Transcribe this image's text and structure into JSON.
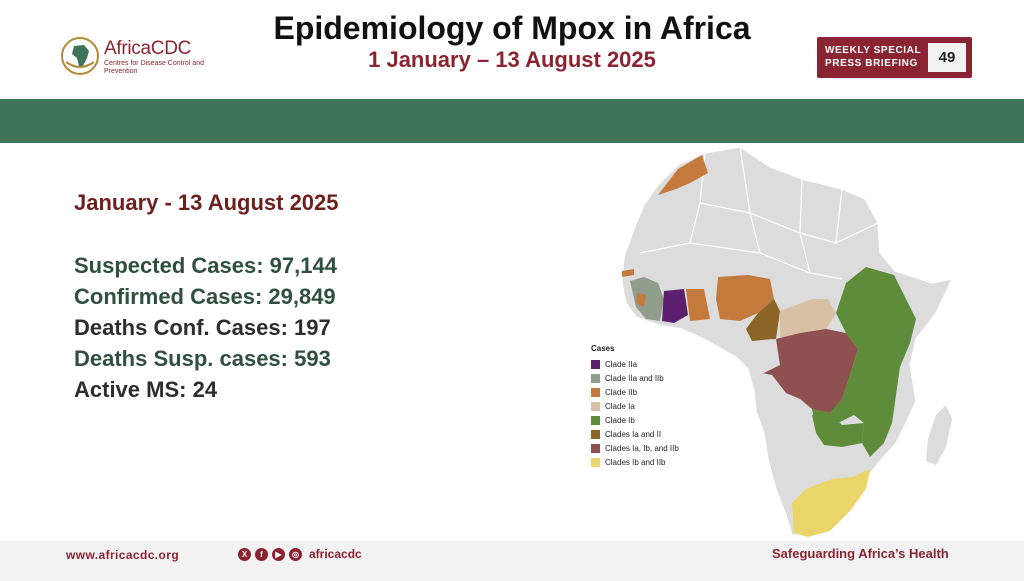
{
  "header": {
    "logo_brand": "AfricaCDC",
    "logo_subtitle": "Centres for Disease Control and Prevention",
    "title": "Epidemiology of Mpox in Africa",
    "subtitle": "1 January – 13 August 2025",
    "briefing_label_line1": "WEEKLY SPECIAL",
    "briefing_label_line2": "PRESS BRIEFING",
    "briefing_number": "49"
  },
  "summary": {
    "period": "January - 13 August  2025",
    "stats": [
      {
        "text": "Suspected Cases: 97,144",
        "tone": "green"
      },
      {
        "text": "Confirmed Cases: 29,849",
        "tone": "green"
      },
      {
        "text": "Deaths Conf. Cases: 197",
        "tone": "dark"
      },
      {
        "text": "Deaths Susp. cases: 593",
        "tone": "green"
      },
      {
        "text": "Active MS: 24",
        "tone": "dark"
      }
    ]
  },
  "map_legend": {
    "title": "Cases",
    "items": [
      {
        "label": "Clade IIa",
        "color": "#5b1f6e"
      },
      {
        "label": "Clade IIa and IIb",
        "color": "#8f9e8a"
      },
      {
        "label": "Clade IIb",
        "color": "#c47a3c"
      },
      {
        "label": "Clade Ia",
        "color": "#d8c0a4"
      },
      {
        "label": "Clade Ib",
        "color": "#5e8c3a"
      },
      {
        "label": "Clades Ia and II",
        "color": "#8b6428"
      },
      {
        "label": "Clades Ia, Ib, and IIb",
        "color": "#8e5150"
      },
      {
        "label": "Clades Ib and IIb",
        "color": "#e9d56a"
      }
    ],
    "base_color": "#dcdcdc"
  },
  "footer": {
    "website": "www.africacdc.org",
    "social_handle": "africacdc",
    "slogan": "Safeguarding Africa’s Health"
  },
  "colors": {
    "brand": "#8a2432",
    "band": "#3e7457",
    "stat_green": "#2f4f3f"
  }
}
